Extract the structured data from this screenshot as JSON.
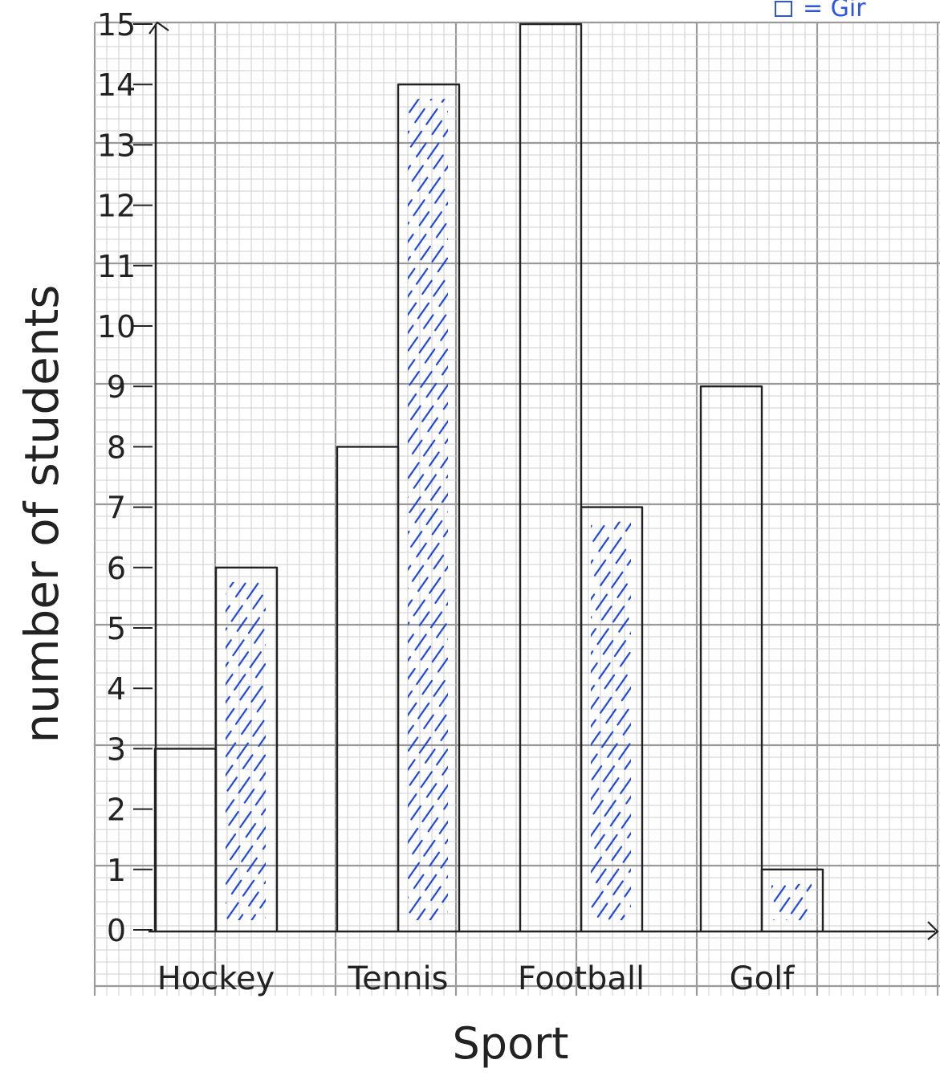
{
  "chart_data": {
    "type": "bar",
    "categories": [
      "Hockey",
      "Tennis",
      "Football",
      "Golf"
    ],
    "series": [
      {
        "values": [
          3,
          8,
          15,
          9
        ]
      },
      {
        "values": [
          6,
          14,
          7,
          1
        ]
      }
    ],
    "xlabel": "Sport",
    "ylabel": "number of students",
    "ylim": [
      0,
      15
    ],
    "yticks": [
      0,
      1,
      2,
      3,
      4,
      5,
      6,
      7,
      8,
      9,
      10,
      11,
      12,
      13,
      14,
      15
    ],
    "legend_text": "= Gir",
    "grid": true,
    "colors": {
      "grid_minor": "#cfcfcf",
      "grid_major": "#9a9a9a",
      "ink": "#222222",
      "hatch": "#1f47d6",
      "legend": "#2a55e8"
    }
  }
}
